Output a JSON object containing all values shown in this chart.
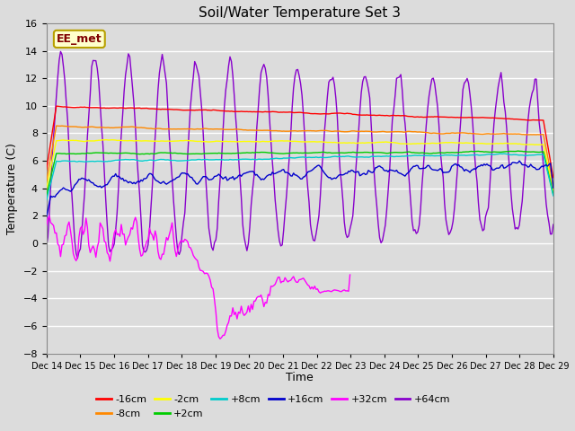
{
  "title": "Soil/Water Temperature Set 3",
  "xlabel": "Time",
  "ylabel": "Temperature (C)",
  "ylim": [
    -8,
    16
  ],
  "yticks": [
    -8,
    -6,
    -4,
    -2,
    0,
    2,
    4,
    6,
    8,
    10,
    12,
    14,
    16
  ],
  "x_tick_labels": [
    "Dec 14",
    "Dec 15",
    "Dec 16",
    "Dec 17",
    "Dec 18",
    "Dec 19",
    "Dec 20",
    "Dec 21",
    "Dec 22",
    "Dec 23",
    "Dec 24",
    "Dec 25",
    "Dec 26",
    "Dec 27",
    "Dec 28",
    "Dec 29"
  ],
  "background_color": "#dcdcdc",
  "plot_bg_color": "#dcdcdc",
  "grid_color": "#ffffff",
  "label_box_color": "#ffffcc",
  "label_box_edge": "#b8a000",
  "label_text": "EE_met",
  "label_text_color": "#800000",
  "series": {
    "-16cm": {
      "color": "#ff0000"
    },
    "-8cm": {
      "color": "#ff8800"
    },
    "-2cm": {
      "color": "#ffff00"
    },
    "+2cm": {
      "color": "#00cc00"
    },
    "+8cm": {
      "color": "#00cccc"
    },
    "+16cm": {
      "color": "#0000cc"
    },
    "+32cm": {
      "color": "#ff00ff"
    },
    "+64cm": {
      "color": "#8800cc"
    }
  }
}
